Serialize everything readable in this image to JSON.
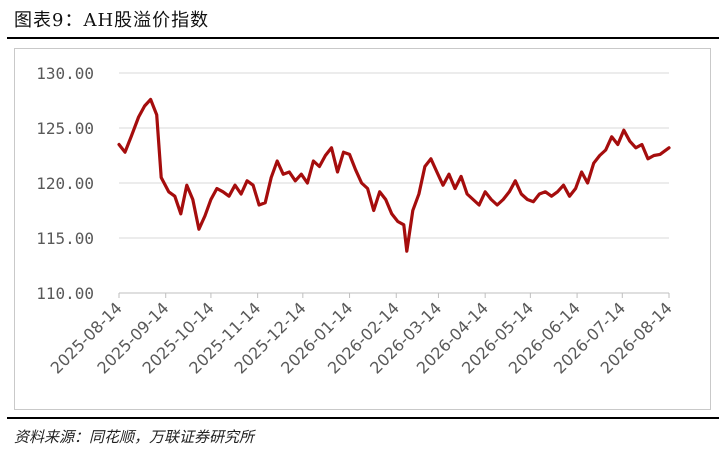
{
  "figure_title": "图表9：AH股溢价指数",
  "source": "资料来源：同花顺，万联证券研究所",
  "chart_data": {
    "type": "line",
    "title": "",
    "xlabel": "",
    "ylabel": "",
    "ylim": [
      110,
      130
    ],
    "yticks": [
      "110.00",
      "115.00",
      "120.00",
      "125.00",
      "130.00"
    ],
    "xticks": [
      "2025-08-14",
      "2025-09-14",
      "2025-10-14",
      "2025-11-14",
      "2025-12-14",
      "2026-01-14",
      "2026-02-14",
      "2026-03-14",
      "2026-04-14",
      "2026-05-14",
      "2026-06-14",
      "2026-07-14",
      "2026-08-14"
    ],
    "grid": true,
    "legend": "none",
    "line_color": "#a50d0d",
    "series": [
      {
        "x": [
          "2025-08-14",
          "2025-08-18",
          "2025-08-22",
          "2025-08-27",
          "2025-08-31",
          "2025-09-04",
          "2025-09-08",
          "2025-09-11",
          "2025-09-16",
          "2025-09-20",
          "2025-09-24",
          "2025-09-28",
          "2025-10-02",
          "2025-10-06",
          "2025-10-10",
          "2025-10-14",
          "2025-10-18",
          "2025-10-22",
          "2025-10-26",
          "2025-10-30",
          "2025-11-03",
          "2025-11-07",
          "2025-11-11",
          "2025-11-15",
          "2025-11-19",
          "2025-11-23",
          "2025-11-27",
          "2025-12-01",
          "2025-12-05",
          "2025-12-09",
          "2025-12-13",
          "2025-12-17",
          "2025-12-21",
          "2025-12-25",
          "2025-12-29",
          "2026-01-02",
          "2026-01-06",
          "2026-01-10",
          "2026-01-14",
          "2026-01-18",
          "2026-01-22",
          "2026-01-26",
          "2026-01-30",
          "2026-02-03",
          "2026-02-07",
          "2026-02-11",
          "2026-02-15",
          "2026-02-19",
          "2026-02-21",
          "2026-02-25",
          "2026-03-01",
          "2026-03-05",
          "2026-03-09",
          "2026-03-13",
          "2026-03-17",
          "2026-03-21",
          "2026-03-25",
          "2026-03-29",
          "2026-04-02",
          "2026-04-06",
          "2026-04-10",
          "2026-04-14",
          "2026-04-18",
          "2026-04-22",
          "2026-04-26",
          "2026-04-30",
          "2026-05-04",
          "2026-05-08",
          "2026-05-12",
          "2026-05-16",
          "2026-05-20",
          "2026-05-24",
          "2026-05-28",
          "2026-06-01",
          "2026-06-05",
          "2026-06-09",
          "2026-06-13",
          "2026-06-17",
          "2026-06-21",
          "2026-06-25",
          "2026-06-29",
          "2026-07-03",
          "2026-07-07",
          "2026-07-11",
          "2026-07-15",
          "2026-07-19",
          "2026-07-23",
          "2026-07-27",
          "2026-07-31",
          "2026-08-04",
          "2026-08-08",
          "2026-08-14"
        ],
        "y": [
          123.5,
          122.8,
          124.2,
          126.0,
          127.0,
          127.6,
          126.2,
          120.5,
          119.2,
          118.8,
          117.2,
          119.8,
          118.5,
          115.8,
          117.0,
          118.5,
          119.5,
          119.2,
          118.8,
          119.8,
          119.0,
          120.2,
          119.8,
          118.0,
          118.2,
          120.5,
          122.0,
          120.8,
          121.0,
          120.2,
          120.8,
          120.0,
          122.0,
          121.5,
          122.5,
          123.2,
          121.0,
          122.8,
          122.6,
          121.2,
          120.0,
          119.5,
          117.5,
          119.2,
          118.5,
          117.2,
          116.5,
          116.2,
          113.8,
          117.5,
          119.0,
          121.5,
          122.2,
          121.0,
          119.8,
          120.8,
          119.5,
          120.6,
          119.0,
          118.5,
          118.0,
          119.2,
          118.5,
          118.0,
          118.5,
          119.2,
          120.2,
          119.0,
          118.5,
          118.3,
          119.0,
          119.2,
          118.8,
          119.2,
          119.8,
          118.8,
          119.5,
          121.0,
          120.0,
          121.8,
          122.5,
          123.0,
          124.2,
          123.5,
          124.8,
          123.8,
          123.2,
          123.5,
          122.2,
          122.5,
          122.6,
          123.2
        ]
      }
    ]
  }
}
